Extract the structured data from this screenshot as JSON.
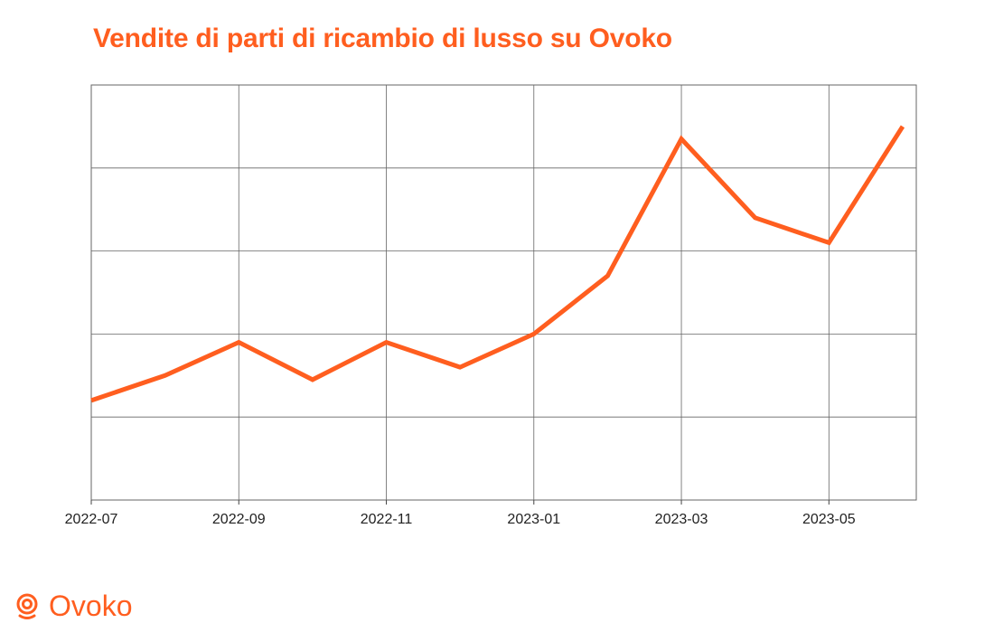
{
  "header": {
    "title": "Vendite di parti di ricambio di lusso su Ovoko"
  },
  "brand": {
    "name": "Ovoko",
    "icon": "ovoko-logo-icon",
    "color": "#ff5e1f"
  },
  "chart_data": {
    "type": "line",
    "title": "Vendite di parti di ricambio di lusso su Ovoko",
    "xlabel": "",
    "ylabel": "",
    "grid": true,
    "legend": "none",
    "x": [
      "2022-07",
      "2022-08",
      "2022-09",
      "2022-10",
      "2022-11",
      "2022-12",
      "2023-01",
      "2023-02",
      "2023-03",
      "2023-04",
      "2023-05",
      "2023-06"
    ],
    "x_tick_labels": [
      "2022-07",
      "2022-09",
      "2022-11",
      "2023-01",
      "2023-03",
      "2023-05"
    ],
    "series": [
      {
        "color": "#ff5e1f",
        "values": [
          1.2,
          1.5,
          1.9,
          1.45,
          1.9,
          1.6,
          2.0,
          2.7,
          4.35,
          3.4,
          3.1,
          4.5
        ]
      }
    ],
    "ylim": [
      0,
      5
    ],
    "y_gridlines": [
      1,
      2,
      3,
      4,
      5
    ]
  }
}
